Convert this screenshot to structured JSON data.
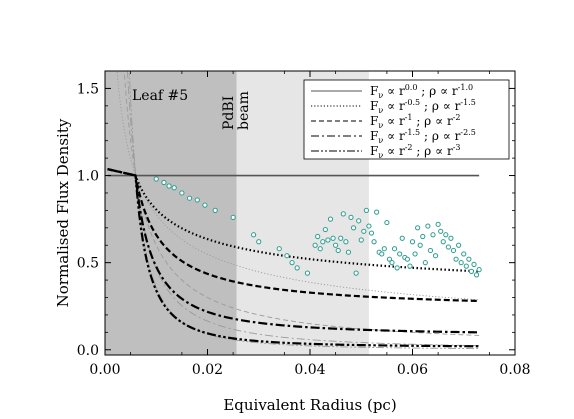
{
  "chart_data": {
    "type": "line",
    "title": "",
    "xlabel": "Equivalent Radius (pc)",
    "ylabel": "Normalised Flux Density",
    "xlim": [
      0.0,
      0.08
    ],
    "ylim": [
      -0.03,
      1.6
    ],
    "xticks": [
      "0.00",
      "0.02",
      "0.04",
      "0.06",
      "0.08"
    ],
    "yticks": [
      "0.0",
      "0.5",
      "1.0",
      "1.5"
    ],
    "annotations": {
      "leaf_label": "Leaf #5",
      "beam_label_1": "PdBI",
      "beam_label_2": "beam"
    },
    "shaded_regions": [
      {
        "x0": 0.0,
        "x1": 0.0257,
        "color": "#bfbfbf"
      },
      {
        "x0": 0.0257,
        "x1": 0.0515,
        "color": "#e6e6e6"
      }
    ],
    "normalisation_radius": 0.006,
    "x_end": 0.073,
    "legend": {
      "position": "top-right",
      "entries": [
        {
          "f_base": "F",
          "f_sub": "ν",
          "f_prop": " ∝ r",
          "f_exp": "0.0",
          "sep": " ;  ",
          "rho": "ρ ∝ r",
          "rho_exp": "-1.0",
          "dash": ""
        },
        {
          "f_base": "F",
          "f_sub": "ν",
          "f_prop": " ∝ r",
          "f_exp": "-0.5",
          "sep": " ;  ",
          "rho": "ρ ∝ r",
          "rho_exp": "-1.5",
          "dash": "1.2,2"
        },
        {
          "f_base": "F",
          "f_sub": "ν",
          "f_prop": " ∝ r",
          "f_exp": "-1",
          "sep": " ;  ",
          "rho": "ρ ∝ r",
          "rho_exp": "-2",
          "dash": "5,3"
        },
        {
          "f_base": "F",
          "f_sub": "ν",
          "f_prop": " ∝ r",
          "f_exp": "-1.5",
          "sep": " ;  ",
          "rho": "ρ ∝ r",
          "rho_exp": "-2.5",
          "dash": "8,3,2,3"
        },
        {
          "f_base": "F",
          "f_sub": "ν",
          "f_prop": " ∝ r",
          "f_exp": "-2",
          "sep": " ;  ",
          "rho": "ρ ∝ r",
          "rho_exp": "-3",
          "dash": "8,2,2,2,2,2"
        }
      ]
    },
    "series": [
      {
        "p": 0.0,
        "style": "solid"
      },
      {
        "p": -0.5,
        "style": "dotted"
      },
      {
        "p": -1.0,
        "style": "dashed"
      },
      {
        "p": -1.5,
        "style": "dashdot"
      },
      {
        "p": -2.0,
        "style": "dashdotdot"
      }
    ],
    "convolved_curves": [
      {
        "p": -0.5,
        "end": 0.45
      },
      {
        "p": -1.0,
        "end": 0.28
      },
      {
        "p": -1.5,
        "end": 0.1
      },
      {
        "p": -2.0,
        "end": 0.02
      }
    ],
    "thin_model_curves": [
      {
        "p": -0.5,
        "color": "#9a9a9a",
        "dash": "1.2,2"
      },
      {
        "p": -1.0,
        "color": "#9a9a9a",
        "dash": "5,3"
      },
      {
        "p": -1.5,
        "color": "#9a9a9a",
        "dash": "8,3,2,3"
      },
      {
        "p": -2.0,
        "color": "#9a9a9a",
        "dash": "8,2,2,2,2,2"
      }
    ],
    "observed_points": {
      "color": "#2a9d8f",
      "values": [
        [
          0.01,
          0.98
        ],
        [
          0.0115,
          0.96
        ],
        [
          0.0125,
          0.94
        ],
        [
          0.0135,
          0.93
        ],
        [
          0.015,
          0.9
        ],
        [
          0.0165,
          0.87
        ],
        [
          0.018,
          0.86
        ],
        [
          0.0195,
          0.83
        ],
        [
          0.0215,
          0.8
        ],
        [
          0.025,
          0.76
        ],
        [
          0.029,
          0.66
        ],
        [
          0.03,
          0.62
        ],
        [
          0.034,
          0.58
        ],
        [
          0.0355,
          0.54
        ],
        [
          0.0365,
          0.5
        ],
        [
          0.0375,
          0.47
        ],
        [
          0.0395,
          0.44
        ],
        [
          0.041,
          0.6
        ],
        [
          0.0415,
          0.65
        ],
        [
          0.042,
          0.58
        ],
        [
          0.0425,
          0.62
        ],
        [
          0.043,
          0.69
        ],
        [
          0.0435,
          0.63
        ],
        [
          0.044,
          0.75
        ],
        [
          0.0445,
          0.64
        ],
        [
          0.045,
          0.6
        ],
        [
          0.0455,
          0.57
        ],
        [
          0.046,
          0.64
        ],
        [
          0.0465,
          0.78
        ],
        [
          0.047,
          0.62
        ],
        [
          0.0475,
          0.56
        ],
        [
          0.048,
          0.76
        ],
        [
          0.0485,
          0.7
        ],
        [
          0.049,
          0.44
        ],
        [
          0.0495,
          0.74
        ],
        [
          0.05,
          0.63
        ],
        [
          0.0505,
          0.68
        ],
        [
          0.051,
          0.8
        ],
        [
          0.0515,
          0.71
        ],
        [
          0.052,
          0.67
        ],
        [
          0.0525,
          0.62
        ],
        [
          0.053,
          0.79
        ],
        [
          0.0535,
          0.56
        ],
        [
          0.054,
          0.55
        ],
        [
          0.0545,
          0.58
        ],
        [
          0.055,
          0.73
        ],
        [
          0.0555,
          0.52
        ],
        [
          0.056,
          0.5
        ],
        [
          0.0565,
          0.58
        ],
        [
          0.057,
          0.47
        ],
        [
          0.0575,
          0.55
        ],
        [
          0.058,
          0.64
        ],
        [
          0.0585,
          0.53
        ],
        [
          0.059,
          0.52
        ],
        [
          0.0595,
          0.48
        ],
        [
          0.06,
          0.62
        ],
        [
          0.0605,
          0.55
        ],
        [
          0.061,
          0.7
        ],
        [
          0.0615,
          0.6
        ],
        [
          0.062,
          0.65
        ],
        [
          0.0625,
          0.5
        ],
        [
          0.063,
          0.71
        ],
        [
          0.0635,
          0.57
        ],
        [
          0.064,
          0.66
        ],
        [
          0.0645,
          0.54
        ],
        [
          0.065,
          0.72
        ],
        [
          0.0655,
          0.68
        ],
        [
          0.066,
          0.62
        ],
        [
          0.0665,
          0.66
        ],
        [
          0.067,
          0.59
        ],
        [
          0.0675,
          0.64
        ],
        [
          0.068,
          0.57
        ],
        [
          0.0685,
          0.52
        ],
        [
          0.069,
          0.6
        ],
        [
          0.0695,
          0.5
        ],
        [
          0.07,
          0.55
        ],
        [
          0.0705,
          0.48
        ],
        [
          0.071,
          0.52
        ],
        [
          0.0715,
          0.45
        ],
        [
          0.072,
          0.49
        ],
        [
          0.0725,
          0.43
        ],
        [
          0.073,
          0.46
        ]
      ]
    },
    "grid": false
  }
}
